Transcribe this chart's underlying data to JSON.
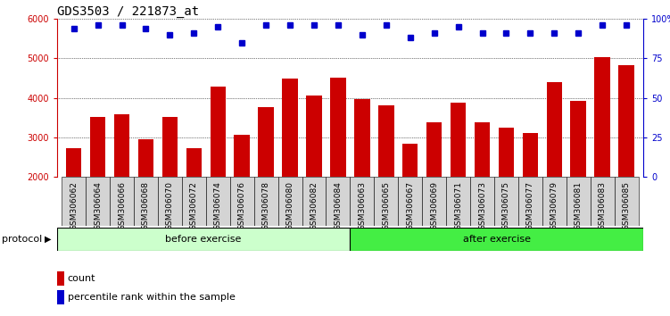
{
  "title": "GDS3503 / 221873_at",
  "categories": [
    "GSM306062",
    "GSM306064",
    "GSM306066",
    "GSM306068",
    "GSM306070",
    "GSM306072",
    "GSM306074",
    "GSM306076",
    "GSM306078",
    "GSM306080",
    "GSM306082",
    "GSM306084",
    "GSM306063",
    "GSM306065",
    "GSM306067",
    "GSM306069",
    "GSM306071",
    "GSM306073",
    "GSM306075",
    "GSM306077",
    "GSM306079",
    "GSM306081",
    "GSM306083",
    "GSM306085"
  ],
  "counts": [
    2720,
    3520,
    3580,
    2960,
    3520,
    2730,
    4280,
    3060,
    3770,
    4500,
    4060,
    4510,
    3980,
    3810,
    2850,
    3380,
    3880,
    3380,
    3240,
    3120,
    4390,
    3930,
    5040,
    4830
  ],
  "percentiles": [
    94,
    96,
    96,
    94,
    90,
    91,
    95,
    85,
    96,
    96,
    96,
    96,
    90,
    96,
    88,
    91,
    95,
    91,
    91,
    91,
    91,
    91,
    96,
    96
  ],
  "bar_color": "#cc0000",
  "dot_color": "#0000cc",
  "ylim_left": [
    2000,
    6000
  ],
  "ylim_right": [
    0,
    100
  ],
  "yticks_left": [
    2000,
    3000,
    4000,
    5000,
    6000
  ],
  "yticks_right": [
    0,
    25,
    50,
    75,
    100
  ],
  "yticklabels_right": [
    "0",
    "25",
    "50",
    "75",
    "100%"
  ],
  "before_exercise_count": 12,
  "after_exercise_count": 12,
  "protocol_label": "protocol",
  "before_label": "before exercise",
  "after_label": "after exercise",
  "before_color": "#ccffcc",
  "after_color": "#44ee44",
  "legend_count_label": "count",
  "legend_pct_label": "percentile rank within the sample",
  "title_fontsize": 10,
  "tick_fontsize": 7
}
